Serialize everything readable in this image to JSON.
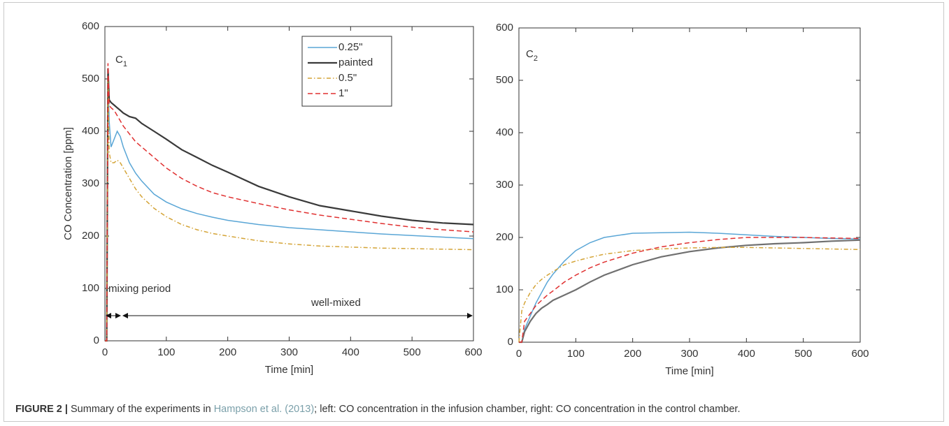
{
  "chart_data": [
    {
      "type": "line",
      "xlabel": "Time [min]",
      "ylabel": "CO Concentration [ppm]",
      "annotations": [
        {
          "text": "C",
          "sub": "1"
        },
        {
          "text": "mixing period"
        },
        {
          "text": "well-mixed"
        }
      ],
      "xlim": [
        0,
        600
      ],
      "ylim": [
        0,
        600
      ],
      "xticks": [
        0,
        100,
        200,
        300,
        400,
        500,
        600
      ],
      "yticks": [
        0,
        100,
        200,
        300,
        400,
        500,
        600
      ],
      "legend": "upper right",
      "x": [
        0,
        3,
        5,
        7,
        10,
        15,
        20,
        25,
        30,
        40,
        50,
        60,
        80,
        100,
        125,
        150,
        175,
        200,
        250,
        300,
        350,
        400,
        450,
        500,
        550,
        600
      ],
      "series": [
        {
          "name": "0.25\"",
          "color": "#5aa6d6",
          "style": "solid",
          "values": [
            0,
            0,
            510,
            420,
            370,
            385,
            400,
            390,
            370,
            340,
            320,
            305,
            280,
            265,
            252,
            243,
            236,
            230,
            222,
            216,
            212,
            208,
            204,
            201,
            198,
            195
          ]
        },
        {
          "name": "painted",
          "color": "#3a3a3a",
          "style": "solid",
          "values": [
            0,
            0,
            520,
            460,
            455,
            450,
            445,
            440,
            435,
            428,
            425,
            415,
            400,
            385,
            365,
            350,
            335,
            322,
            295,
            275,
            258,
            248,
            238,
            230,
            225,
            222
          ]
        },
        {
          "name": "0.5\"",
          "color": "#d4a437",
          "style": "dashdot",
          "values": [
            0,
            0,
            500,
            360,
            340,
            340,
            345,
            340,
            330,
            310,
            290,
            275,
            253,
            237,
            222,
            212,
            205,
            200,
            191,
            185,
            181,
            179,
            177,
            176,
            175,
            174
          ]
        },
        {
          "name": "1\"",
          "color": "#e03030",
          "style": "dashed",
          "values": [
            0,
            0,
            530,
            450,
            445,
            440,
            430,
            420,
            410,
            395,
            380,
            370,
            350,
            330,
            310,
            295,
            283,
            275,
            262,
            250,
            240,
            232,
            224,
            217,
            212,
            208
          ]
        }
      ]
    },
    {
      "type": "line",
      "xlabel": "Time [min]",
      "annotations": [
        {
          "text": "C",
          "sub": "2"
        }
      ],
      "xlim": [
        0,
        600
      ],
      "ylim": [
        0,
        600
      ],
      "xticks": [
        0,
        100,
        200,
        300,
        400,
        500,
        600
      ],
      "yticks": [
        0,
        100,
        200,
        300,
        400,
        500,
        600
      ],
      "x": [
        0,
        5,
        10,
        20,
        30,
        40,
        50,
        60,
        80,
        100,
        125,
        150,
        200,
        250,
        300,
        350,
        400,
        450,
        500,
        550,
        600
      ],
      "series": [
        {
          "color": "#5aa6d6",
          "style": "solid",
          "values": [
            0,
            0,
            25,
            50,
            75,
            95,
            115,
            130,
            155,
            175,
            190,
            200,
            208,
            209,
            210,
            208,
            205,
            202,
            200,
            198,
            197
          ]
        },
        {
          "color": "#707070",
          "style": "solid",
          "values": [
            0,
            0,
            20,
            40,
            55,
            65,
            72,
            80,
            90,
            100,
            115,
            128,
            148,
            163,
            173,
            180,
            185,
            188,
            190,
            193,
            195
          ]
        },
        {
          "color": "#d4a437",
          "style": "dashdot",
          "values": [
            0,
            60,
            75,
            95,
            110,
            120,
            128,
            135,
            148,
            155,
            162,
            168,
            175,
            178,
            180,
            181,
            181,
            180,
            179,
            178,
            177
          ]
        },
        {
          "color": "#e03030",
          "style": "dashed",
          "values": [
            0,
            0,
            40,
            55,
            70,
            80,
            90,
            98,
            115,
            128,
            142,
            153,
            170,
            182,
            190,
            196,
            200,
            200,
            200,
            199,
            198
          ]
        }
      ]
    }
  ],
  "caption": {
    "label": "FIGURE 2 |",
    "parts": [
      "Summary of the experiments in",
      "Hampson et al. (2013)",
      "; left: CO concentration in the infusion chamber, right: CO concentration in the control chamber."
    ]
  }
}
